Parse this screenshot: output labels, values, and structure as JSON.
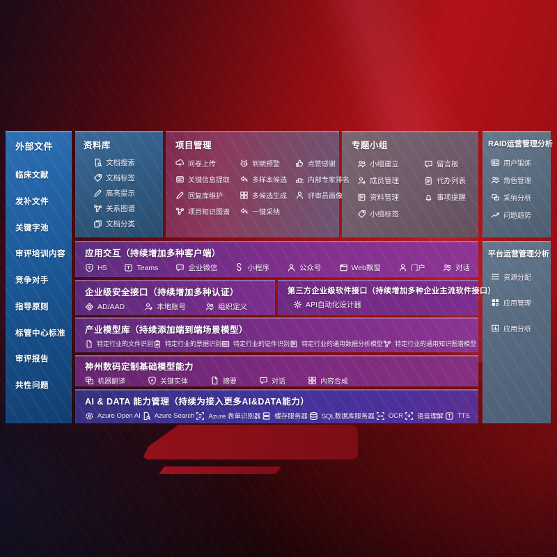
{
  "palette": {
    "background_red": "#b11217",
    "sidebar_blue": "#1d5c9c",
    "library_blue": "#30597f",
    "project_maroon": "#8b3a5e",
    "group_mauve": "#6e5a68",
    "raid_slate": "#586a7d",
    "interaction_purple": "#82308e",
    "aidata_indigo": "#41339b",
    "text": "#ffffff"
  },
  "sidebar": {
    "title": "外部文件",
    "items": [
      "临床文献",
      "发补文件",
      "关键字池",
      "审评培训内容",
      "竞争对手",
      "指导原则",
      "标管中心标准",
      "审评报告",
      "共性问题"
    ]
  },
  "panels": {
    "library": {
      "title": "资料库",
      "items": [
        {
          "label": "文档搜索",
          "icon": "doc-search"
        },
        {
          "label": "文档标签",
          "icon": "tag"
        },
        {
          "label": "高亮提示",
          "icon": "highlighter"
        },
        {
          "label": "关系图谱",
          "icon": "graph"
        },
        {
          "label": "文档分类",
          "icon": "copy"
        }
      ]
    },
    "project": {
      "title": "项目管理",
      "items": [
        {
          "label": "问卷上传",
          "icon": "cloud-upload"
        },
        {
          "label": "到期预警",
          "icon": "alarm"
        },
        {
          "label": "点赞感谢",
          "icon": "thumb-up"
        },
        {
          "label": "关键信息提取",
          "icon": "extract-window"
        },
        {
          "label": "多样本候选",
          "icon": "reply-arrow"
        },
        {
          "label": "内部专家排名",
          "icon": "ranking-podium"
        },
        {
          "label": "回复库维护",
          "icon": "pencil-edit"
        },
        {
          "label": "多候选生成",
          "icon": "grid-gen"
        },
        {
          "label": "评审员画像",
          "icon": "person"
        },
        {
          "label": "项目知识图谱",
          "icon": "knowledge-graph"
        },
        {
          "label": "一键采纳",
          "icon": "adopt-arrow"
        }
      ]
    },
    "group": {
      "title": "专题小组",
      "items": [
        {
          "label": "小组建立",
          "icon": "people-group"
        },
        {
          "label": "留言板",
          "icon": "bbs-board"
        },
        {
          "label": "成员管理",
          "icon": "member-person"
        },
        {
          "label": "代办列表",
          "icon": "todo-clipboard"
        },
        {
          "label": "资料管理",
          "icon": "album"
        },
        {
          "label": "事项提醒",
          "icon": "bell"
        },
        {
          "label": "小组标签",
          "icon": "tag"
        }
      ]
    },
    "raid": {
      "title": "RAID运营管理分析",
      "items": [
        {
          "label": "用户锻炼",
          "icon": "id-card"
        },
        {
          "label": "角色管理",
          "icon": "people-group"
        },
        {
          "label": "采纳分析",
          "icon": "qa-bubbles"
        },
        {
          "label": "问题趋势",
          "icon": "trend-chart"
        }
      ]
    },
    "platform": {
      "title": "平台运营管理分析",
      "items": [
        {
          "label": "资源分配",
          "icon": "list-lines"
        },
        {
          "label": "应用管理",
          "icon": "app-grid"
        },
        {
          "label": "应用分析",
          "icon": "app-chart"
        }
      ]
    },
    "interaction": {
      "title": "应用交互（持续增加多种客户端）",
      "items": [
        {
          "label": "H5",
          "icon": "h5-badge"
        },
        {
          "label": "Teams",
          "icon": "teams"
        },
        {
          "label": "企业微信",
          "icon": "wechat-work"
        },
        {
          "label": "小程序",
          "icon": "miniprogram"
        },
        {
          "label": "公众号",
          "icon": "official-account"
        },
        {
          "label": "Web飘窗",
          "icon": "web-window"
        },
        {
          "label": "门户",
          "icon": "portal-person"
        },
        {
          "label": "对话",
          "icon": "dialog-people"
        }
      ]
    },
    "security": {
      "title": "企业级安全接口（持续增加多种认证）",
      "items": [
        {
          "label": "AD/AAD",
          "icon": "shield-diamond"
        },
        {
          "label": "本地账号",
          "icon": "person-badge"
        },
        {
          "label": "组织定义",
          "icon": "org-people"
        }
      ]
    },
    "thirdparty": {
      "title": "第三方企业级软件接口（持续增加多种企业主流软件接口）",
      "items": [
        {
          "label": "API自动化设计器",
          "icon": "api-gear"
        }
      ]
    },
    "industry": {
      "title": "产业模型库（持续添加端到端场景模型）",
      "items": [
        {
          "label": "特定行业的文件识别",
          "icon": "doc-recognize"
        },
        {
          "label": "特定行业的票据识别",
          "icon": "receipt"
        },
        {
          "label": "特定行业的证件识别",
          "icon": "id-card"
        },
        {
          "label": "特定行业的通用数据分析模型",
          "icon": "data-image"
        },
        {
          "label": "特定行业的通用知识图谱模型",
          "icon": "knowledge-graph"
        }
      ]
    },
    "basemodel": {
      "title": "神州数码定制基础模型能力",
      "items": [
        {
          "label": "机器翻译",
          "icon": "translate"
        },
        {
          "label": "关键实体",
          "icon": "entity-shield"
        },
        {
          "label": "摘要",
          "icon": "summary-doc"
        },
        {
          "label": "对话",
          "icon": "chat-bubble"
        },
        {
          "label": "内容合成",
          "icon": "compose-grid"
        }
      ]
    },
    "aidata": {
      "title": "AI & DATA 能力管理（持续为接入更多AI&DATA能力）",
      "items": [
        {
          "label": "Azure Open AI",
          "icon": "openai-swirl"
        },
        {
          "label": "Azure Search",
          "icon": "search-doc"
        },
        {
          "label": "Azure 表单识别器",
          "icon": "form-recognizer"
        },
        {
          "label": "缓存服务器",
          "icon": "cache-server"
        },
        {
          "label": "SQL数据库服务器",
          "icon": "sql-database"
        },
        {
          "label": "OCR",
          "icon": "ocr-frame"
        },
        {
          "label": "语音理解",
          "icon": "speech-understand"
        },
        {
          "label": "TTS",
          "icon": "tts"
        }
      ]
    }
  }
}
